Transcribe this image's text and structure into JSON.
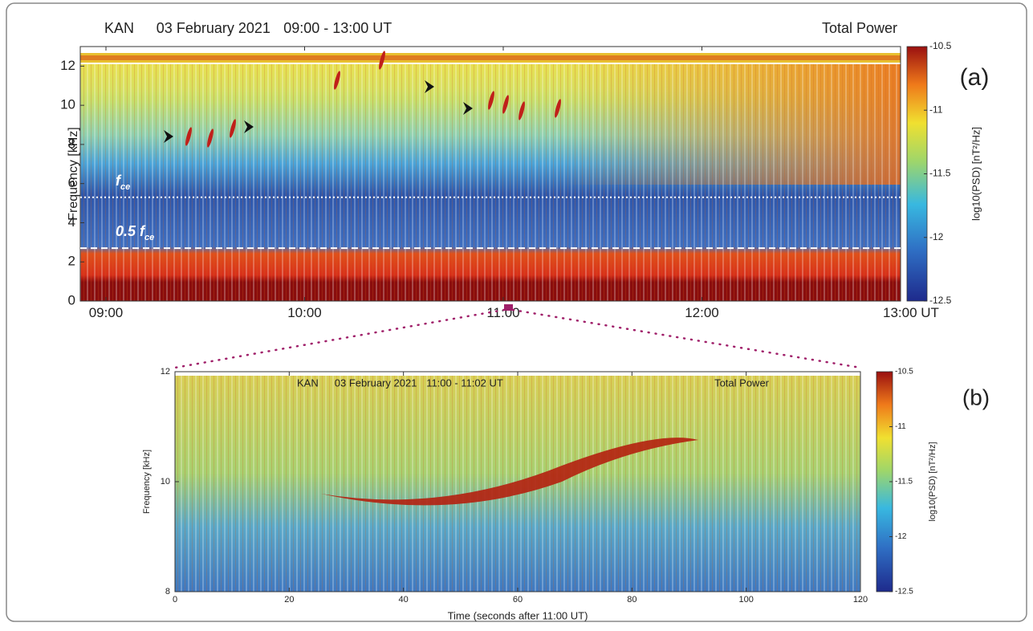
{
  "chart_data": [
    {
      "type": "spectrogram",
      "panel": "(a)",
      "station": "KAN",
      "date": "03 February 2021",
      "time_range": "09:00 - 13:00 UT",
      "right_title": "Total Power",
      "y_label": "Frequency [kHz]",
      "xlim": [
        9,
        13
      ],
      "xticks": [
        {
          "value": 9,
          "label": "09:00"
        },
        {
          "value": 10,
          "label": "10:00"
        },
        {
          "value": 11,
          "label": "11:00"
        },
        {
          "value": 12,
          "label": "12:00"
        },
        {
          "value": 13,
          "label": "13:00 UT"
        }
      ],
      "ylim": [
        0,
        13
      ],
      "yticks": [
        0,
        2,
        4,
        6,
        8,
        10,
        12
      ],
      "reference_lines": [
        {
          "value": 5.3,
          "label": "f",
          "label_sub": "ce",
          "style": "dotted"
        },
        {
          "value": 2.7,
          "label": "0.5 f",
          "label_sub": "ce",
          "style": "dashed"
        }
      ],
      "colorbar": {
        "label": "log10(PSD) [nT²/Hz]",
        "lim": [
          -12.5,
          -10.5
        ],
        "ticks": [
          -10.5,
          -11,
          -11.5,
          -12,
          -12.5
        ]
      }
    },
    {
      "type": "spectrogram",
      "panel": "(b)",
      "station": "KAN",
      "date": "03 February 2021",
      "time_range": "11:00 - 11:02 UT",
      "right_title": "Total Power",
      "y_label": "Frequency [kHz]",
      "x_label": "Time (seconds after 11:00 UT)",
      "xlim": [
        0,
        120
      ],
      "xticks": [
        0,
        20,
        40,
        60,
        80,
        100,
        120
      ],
      "ylim": [
        8,
        12
      ],
      "yticks": [
        8,
        10,
        12
      ],
      "colorbar": {
        "label": "log10(PSD) [nT²/Hz]",
        "lim": [
          -12.5,
          -10.5
        ],
        "ticks": [
          -10.5,
          -11,
          -11.5,
          -12,
          -12.5
        ]
      }
    }
  ]
}
